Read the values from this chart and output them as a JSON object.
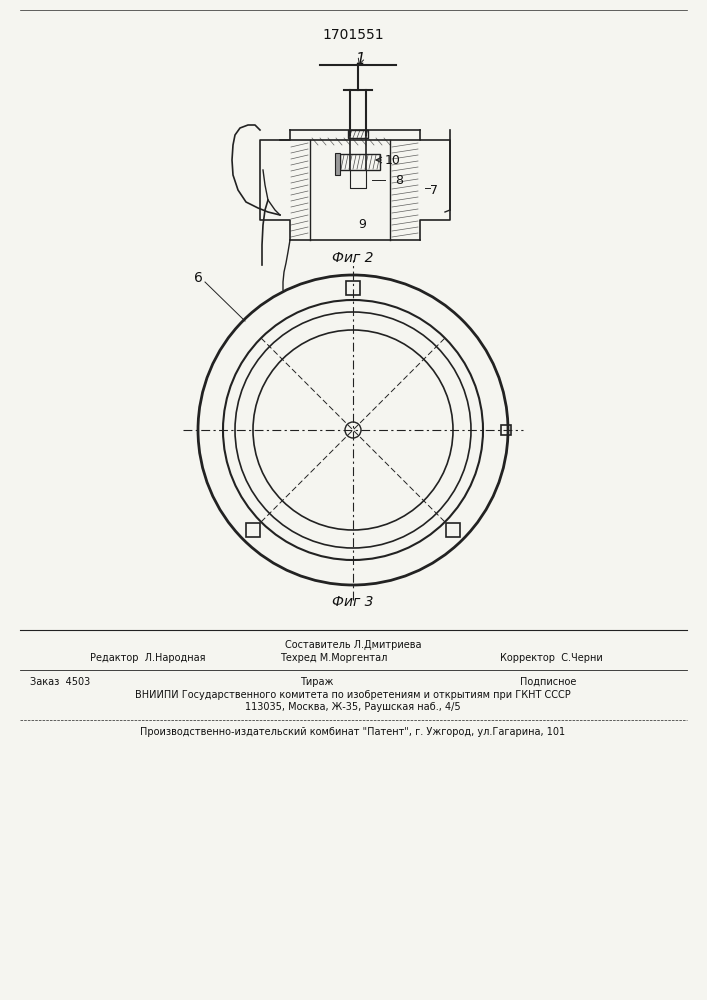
{
  "title": "1701551",
  "fig2_label": "Фиг 2",
  "fig3_label": "Фиг 3",
  "footer_line1_left": "Редактор  Л.Народная",
  "footer_line1_center_top": "Составитель Л.Дмитриева",
  "footer_line1_center": "Техред М.Моргентал",
  "footer_line1_right": "Корректор  С.Черни",
  "footer_line2_left": "Заказ  4503",
  "footer_line2_center": "Тираж",
  "footer_line2_right": "Подписное",
  "footer_line3": "ВНИИПИ Государственного комитета по изобретениям и открытиям при ГКНТ СССР",
  "footer_line4": "113035, Москва, Ж-35, Раушская наб., 4/5",
  "footer_line5": "Производственно-издательский комбинат \"Патент\", г. Ужгород, ул.Гагарина, 101",
  "bg_color": "#f5f5f0",
  "line_color": "#222222",
  "text_color": "#111111"
}
